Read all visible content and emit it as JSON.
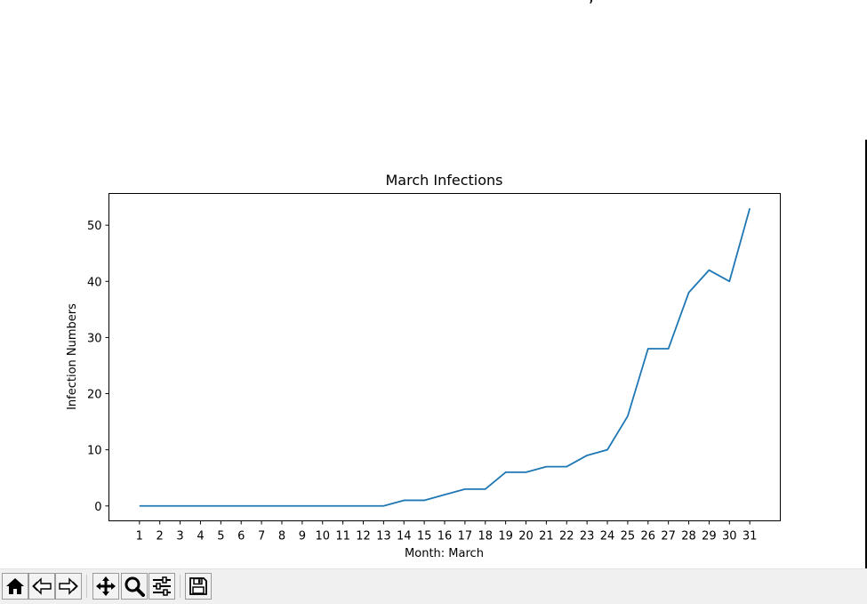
{
  "window": {
    "title_fragment": ","
  },
  "chart_data": {
    "type": "line",
    "title": "March Infections",
    "xlabel": "Month: March",
    "ylabel": "Infection Numbers",
    "x": [
      1,
      2,
      3,
      4,
      5,
      6,
      7,
      8,
      9,
      10,
      11,
      12,
      13,
      14,
      15,
      16,
      17,
      18,
      19,
      20,
      21,
      22,
      23,
      24,
      25,
      26,
      27,
      28,
      29,
      30,
      31
    ],
    "series": [
      {
        "values": [
          0,
          0,
          0,
          0,
          0,
          0,
          0,
          0,
          0,
          0,
          0,
          0,
          0,
          1,
          1,
          2,
          3,
          3,
          6,
          6,
          7,
          7,
          9,
          10,
          16,
          28,
          28,
          38,
          42,
          40,
          53
        ]
      }
    ],
    "x_ticks": [
      "1",
      "2",
      "3",
      "4",
      "5",
      "6",
      "7",
      "8",
      "9",
      "10",
      "11",
      "12",
      "13",
      "14",
      "15",
      "16",
      "17",
      "18",
      "19",
      "20",
      "21",
      "22",
      "23",
      "24",
      "25",
      "26",
      "27",
      "28",
      "29",
      "30",
      "31"
    ],
    "y_ticks": [
      "0",
      "10",
      "20",
      "30",
      "40",
      "50"
    ],
    "xlim": [
      -0.5,
      32.5
    ],
    "ylim": [
      -2.65,
      55.65
    ],
    "grid": false,
    "line_color": "#1f77b4"
  },
  "toolbar": {
    "buttons": [
      {
        "name": "home-button",
        "icon": "home-icon"
      },
      {
        "name": "back-button",
        "icon": "back-arrow-icon"
      },
      {
        "name": "forward-button",
        "icon": "forward-arrow-icon"
      },
      {
        "name": "pan-button",
        "icon": "move-arrows-icon"
      },
      {
        "name": "zoom-button",
        "icon": "magnifier-icon"
      },
      {
        "name": "configure-subplots-button",
        "icon": "sliders-icon"
      },
      {
        "name": "save-button",
        "icon": "floppy-disk-icon"
      }
    ]
  }
}
